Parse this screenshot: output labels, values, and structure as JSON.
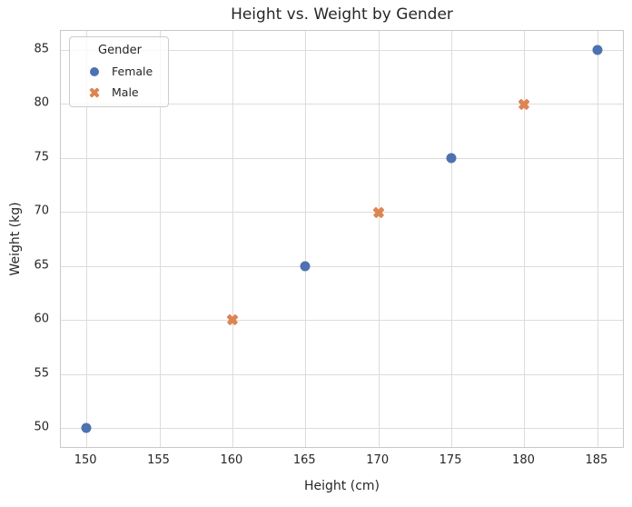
{
  "chart_data": {
    "type": "scatter",
    "title": "Height vs. Weight by Gender",
    "xlabel": "Height (cm)",
    "ylabel": "Weight (kg)",
    "xlim": [
      148.25,
      186.75
    ],
    "ylim": [
      48.25,
      86.75
    ],
    "xticks": [
      150,
      155,
      160,
      165,
      170,
      175,
      180,
      185
    ],
    "yticks": [
      50,
      55,
      60,
      65,
      70,
      75,
      80,
      85
    ],
    "grid": true,
    "legend": {
      "title": "Gender",
      "position": "upper-left",
      "entries": [
        "Female",
        "Male"
      ]
    },
    "series": [
      {
        "name": "Female",
        "marker": "circle",
        "color": "#4C72B0",
        "x": [
          150,
          165,
          175,
          185
        ],
        "y": [
          50,
          65,
          75,
          85
        ]
      },
      {
        "name": "Male",
        "marker": "x",
        "color": "#DD8452",
        "x": [
          160,
          170,
          180
        ],
        "y": [
          60,
          70,
          80
        ]
      }
    ],
    "colors": {
      "grid": "#dcdcdc",
      "spine": "#c9c9c9",
      "text": "#262626",
      "legend_border": "#cccccc"
    }
  }
}
